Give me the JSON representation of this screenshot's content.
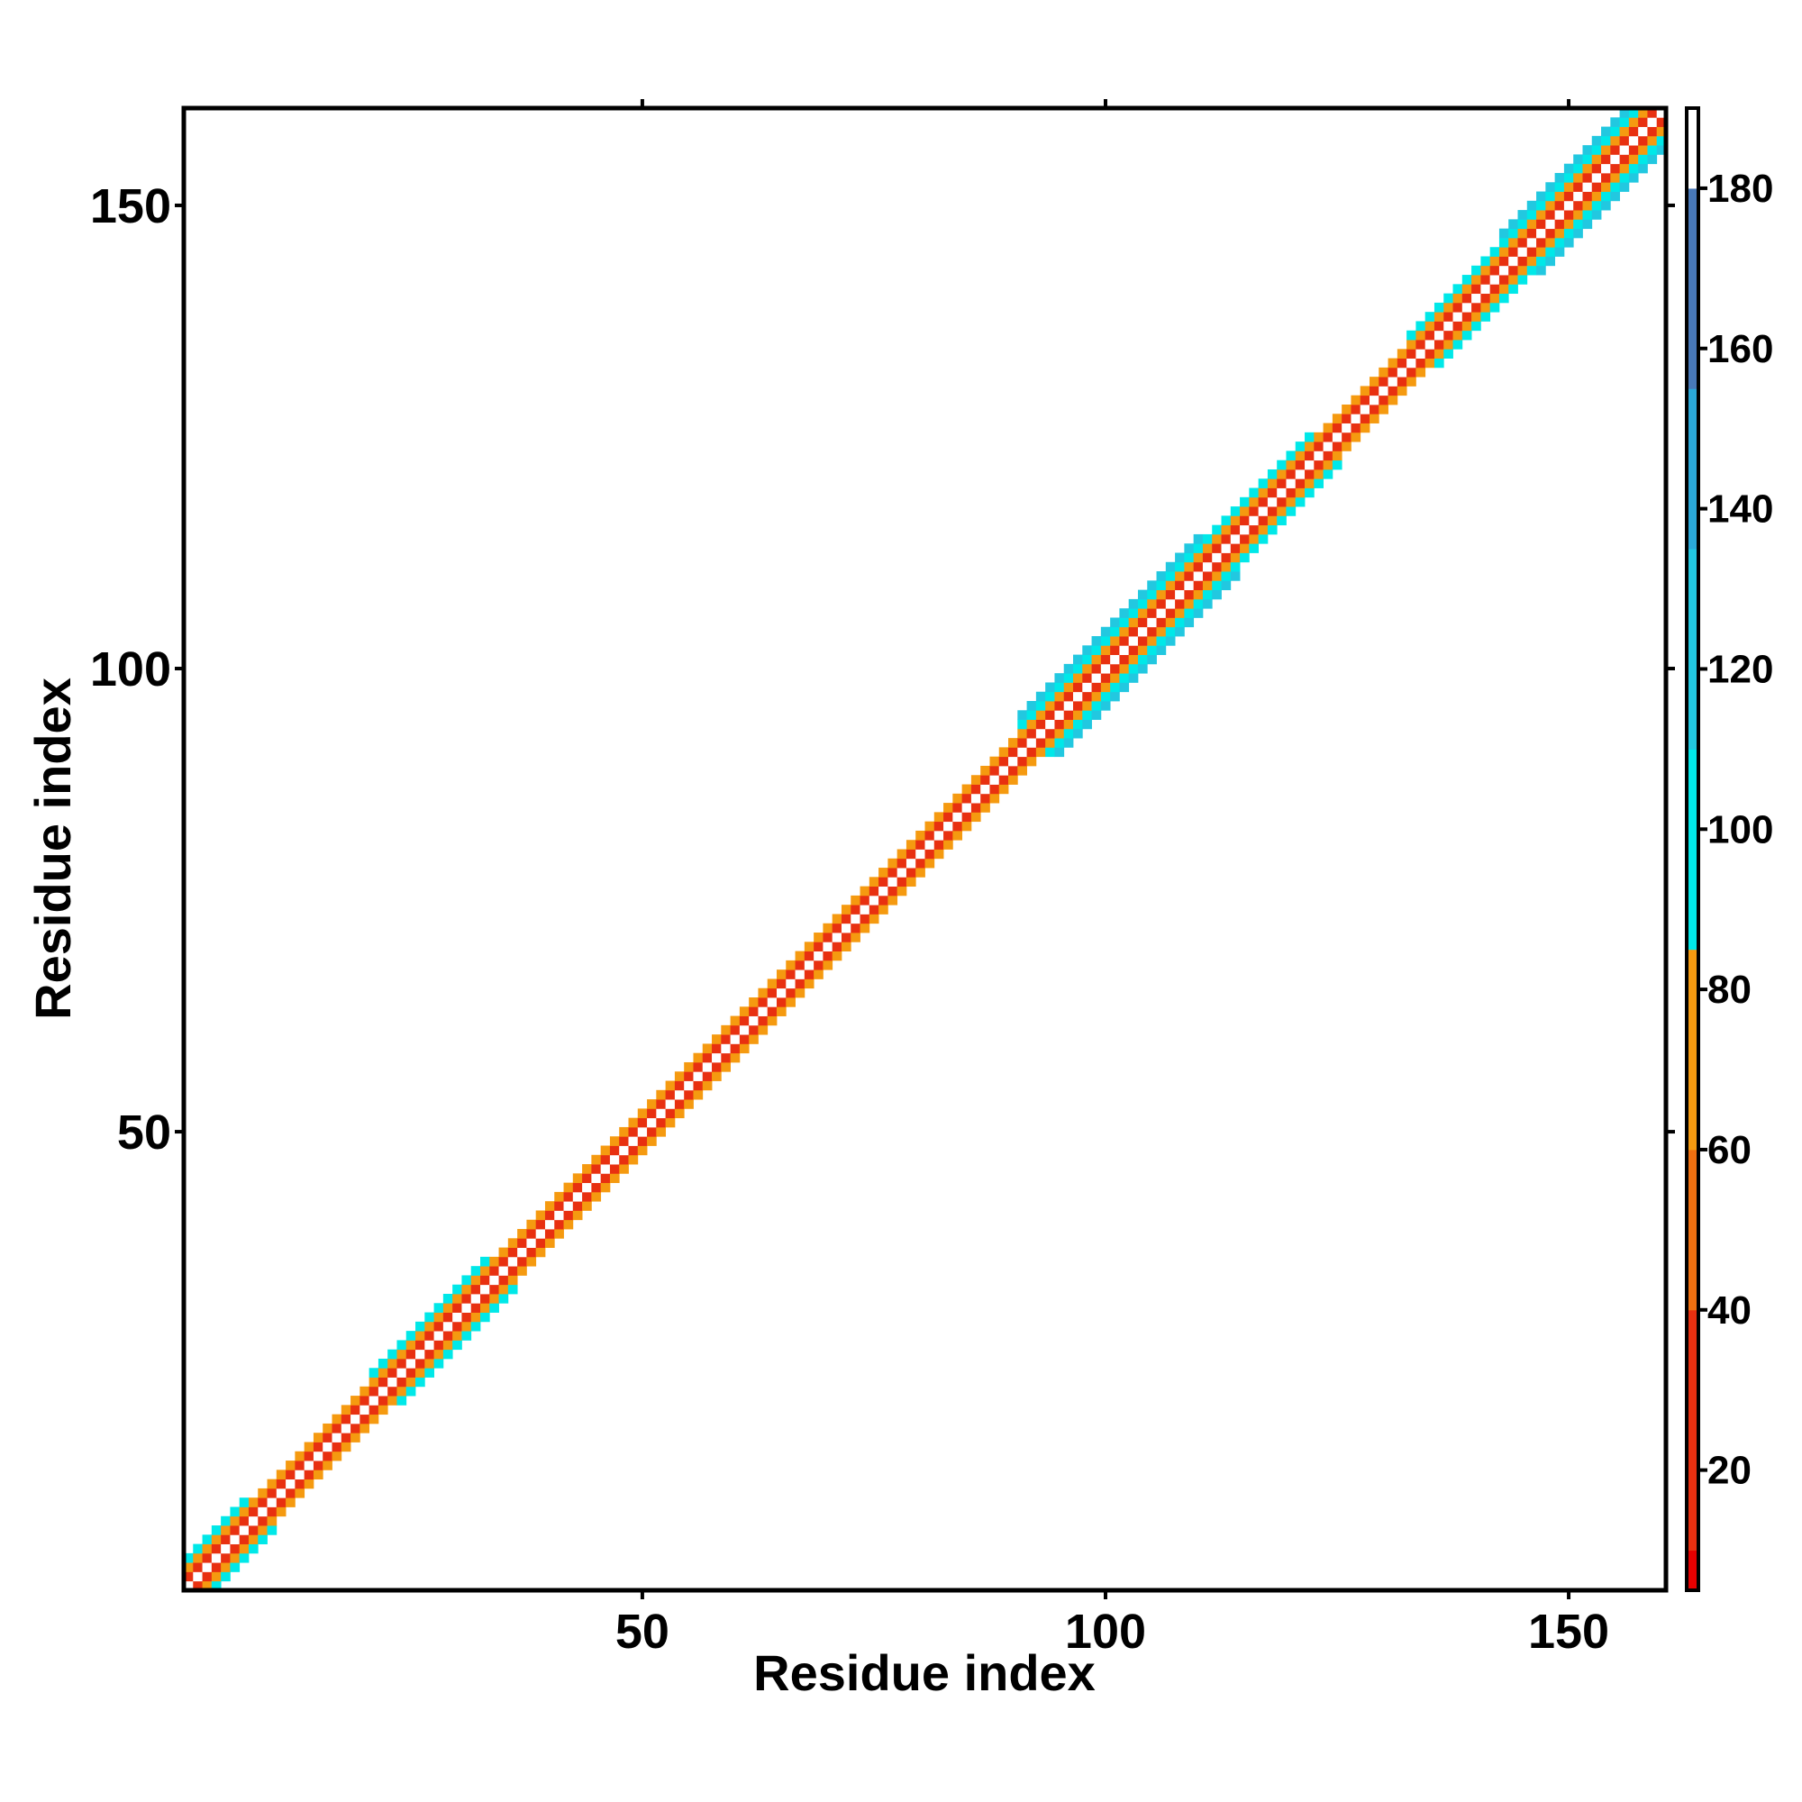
{
  "chart_data": {
    "type": "heatmap",
    "title": "",
    "xlabel": "Residue index",
    "ylabel": "Residue index",
    "xlim": [
      1,
      160
    ],
    "ylim": [
      1,
      160
    ],
    "x_ticks": [
      "50",
      "100",
      "150"
    ],
    "y_ticks": [
      "50",
      "100",
      "150"
    ],
    "colorbar": {
      "range": [
        5,
        190
      ],
      "ticks": [
        "20",
        "40",
        "60",
        "80",
        "100",
        "120",
        "140",
        "160",
        "180"
      ],
      "tick_values": [
        20,
        40,
        60,
        80,
        100,
        120,
        140,
        160,
        180
      ],
      "bands": [
        {
          "from": 5,
          "to": 10,
          "color": "#e60000"
        },
        {
          "from": 10,
          "to": 40,
          "color": "#e83010"
        },
        {
          "from": 40,
          "to": 60,
          "color": "#f07010"
        },
        {
          "from": 60,
          "to": 85,
          "color": "#f59a10"
        },
        {
          "from": 85,
          "to": 110,
          "color": "#00e8e8"
        },
        {
          "from": 110,
          "to": 135,
          "color": "#22c8e0"
        },
        {
          "from": 135,
          "to": 155,
          "color": "#2aa8d8"
        },
        {
          "from": 155,
          "to": 180,
          "color": "#4878b8"
        },
        {
          "from": 180,
          "to": 190,
          "color": "#ffffff"
        }
      ]
    },
    "cell_values": {
      "offset_0": 190,
      "offset_1": 15,
      "offset_2": 70,
      "offset_3": 90,
      "offset_4": 125
    },
    "segments": [
      {
        "from": 1,
        "to": 10,
        "max_offset": 3
      },
      {
        "from": 11,
        "to": 20,
        "max_offset": 2
      },
      {
        "from": 21,
        "to": 36,
        "max_offset": 3
      },
      {
        "from": 37,
        "to": 52,
        "max_offset": 2
      },
      {
        "from": 53,
        "to": 62,
        "max_offset": 2
      },
      {
        "from": 63,
        "to": 90,
        "max_offset": 2
      },
      {
        "from": 91,
        "to": 114,
        "max_offset": 4
      },
      {
        "from": 115,
        "to": 125,
        "max_offset": 3
      },
      {
        "from": 126,
        "to": 132,
        "max_offset": 2
      },
      {
        "from": 133,
        "to": 142,
        "max_offset": 3
      },
      {
        "from": 143,
        "to": 160,
        "max_offset": 4
      }
    ]
  }
}
